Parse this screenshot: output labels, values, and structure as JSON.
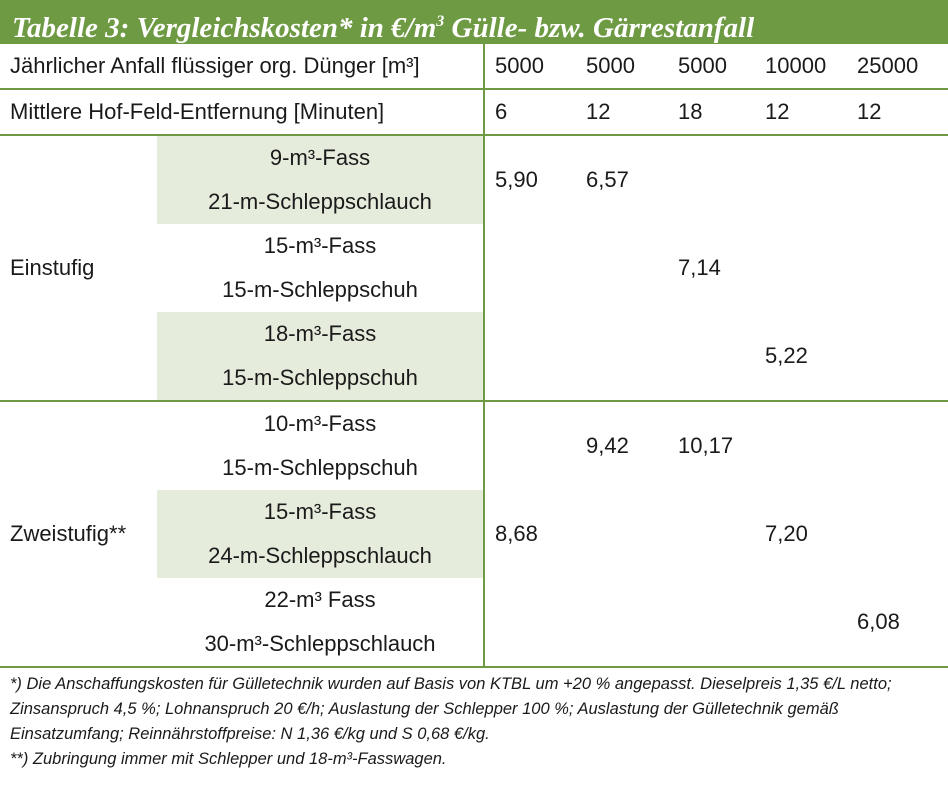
{
  "title": {
    "prefix": "Tabelle 3: Vergleichskosten* in €/m",
    "sup": "3",
    "suffix": " Gülle- bzw. Gärrestanfall"
  },
  "header": {
    "row1_label": "Jährlicher Anfall flüssiger org. Dünger [m³]",
    "row1_values": [
      "5000",
      "5000",
      "5000",
      "10000",
      "25000"
    ],
    "row2_label": "Mittlere Hof-Feld-Entfernung [Minuten]",
    "row2_values": [
      "6",
      "12",
      "18",
      "12",
      "12"
    ]
  },
  "groups": [
    {
      "label": "Einstufig",
      "rows": [
        {
          "line1": "9-m³-Fass",
          "line2": "21-m-Schleppschlauch",
          "values": [
            "5,90",
            "6,57",
            "",
            "",
            ""
          ]
        },
        {
          "line1": "15-m³-Fass",
          "line2": "15-m-Schleppschuh",
          "values": [
            "",
            "",
            "7,14",
            "",
            ""
          ]
        },
        {
          "line1": "18-m³-Fass",
          "line2": "15-m-Schleppschuh",
          "values": [
            "",
            "",
            "",
            "5,22",
            ""
          ]
        }
      ]
    },
    {
      "label": "Zweistufig**",
      "rows": [
        {
          "line1": "10-m³-Fass",
          "line2": "15-m-Schleppschuh",
          "values": [
            "",
            "9,42",
            "10,17",
            "",
            ""
          ]
        },
        {
          "line1": "15-m³-Fass",
          "line2": "24-m-Schleppschlauch",
          "values": [
            "8,68",
            "",
            "",
            "7,20",
            ""
          ]
        },
        {
          "line1": "22-m³ Fass",
          "line2": "30-m³-Schleppschlauch",
          "values": [
            "",
            "",
            "",
            "",
            "6,08"
          ]
        }
      ]
    }
  ],
  "footnotes": {
    "note1": "*) Die Anschaffungskosten für Gülletechnik wurden auf Basis von KTBL um +20 % angepasst. Dieselpreis 1,35 €/L netto; Zinsanspruch 4,5 %; Lohnanspruch 20 €/h; Auslastung der Schlepper 100 %; Auslastung der Gülletechnik gemäß Einsatzumfang; Reinnährstoffpreise: N 1,36 €/kg und S 0,68 €/kg.",
    "note2": "**) Zubringung immer mit Schlepper und 18-m³-Fasswagen."
  },
  "colors": {
    "accent": "#6f9a44",
    "shade": "#e5ecdc"
  }
}
